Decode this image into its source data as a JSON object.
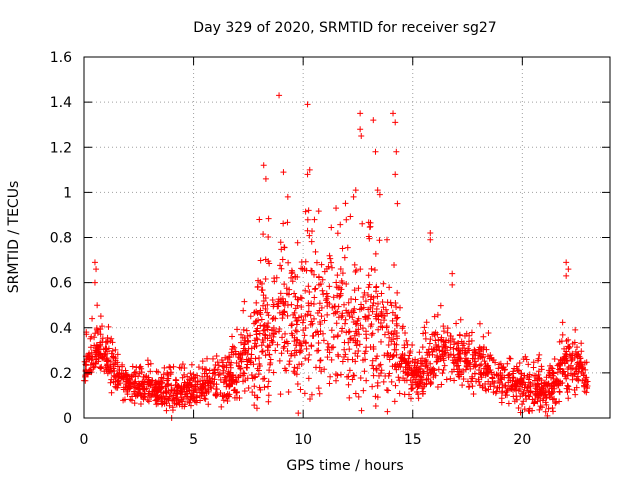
{
  "chart_data": {
    "type": "scatter",
    "title": "Day 329 of 2020, SRMTID for receiver sg27",
    "xlabel": "GPS time / hours",
    "ylabel": "SRMTID / TECUs",
    "xlim": [
      0,
      24
    ],
    "ylim": [
      0,
      1.6
    ],
    "xticks": [
      0,
      5,
      10,
      15,
      20
    ],
    "yticks": [
      0,
      0.2,
      0.4,
      0.6,
      0.8,
      1,
      1.2,
      1.4,
      1.6
    ],
    "ytick_labels": [
      "0",
      "0.2",
      "0.4",
      "0.6",
      "0.8",
      "1",
      "1.2",
      "1.4",
      "1.6"
    ],
    "grid": true,
    "marker": "+",
    "series": [
      {
        "name": "SRMTID",
        "color": "#ff0000",
        "trend": [
          [
            0,
            0.2
          ],
          [
            0.3,
            0.28
          ],
          [
            0.6,
            0.3
          ],
          [
            1,
            0.28
          ],
          [
            1.5,
            0.18
          ],
          [
            2,
            0.15
          ],
          [
            3,
            0.13
          ],
          [
            4,
            0.11
          ],
          [
            5,
            0.12
          ],
          [
            6,
            0.15
          ],
          [
            6.5,
            0.17
          ],
          [
            7,
            0.2
          ],
          [
            7.5,
            0.28
          ],
          [
            8,
            0.35
          ],
          [
            8.5,
            0.4
          ],
          [
            9,
            0.42
          ],
          [
            9.5,
            0.4
          ],
          [
            10,
            0.4
          ],
          [
            10.5,
            0.42
          ],
          [
            11,
            0.43
          ],
          [
            11.5,
            0.42
          ],
          [
            12,
            0.4
          ],
          [
            12.5,
            0.38
          ],
          [
            13,
            0.37
          ],
          [
            13.5,
            0.35
          ],
          [
            14,
            0.33
          ],
          [
            14.5,
            0.25
          ],
          [
            15,
            0.18
          ],
          [
            15.5,
            0.2
          ],
          [
            16,
            0.27
          ],
          [
            16.5,
            0.3
          ],
          [
            17,
            0.25
          ],
          [
            17.5,
            0.23
          ],
          [
            18,
            0.25
          ],
          [
            18.5,
            0.2
          ],
          [
            19,
            0.17
          ],
          [
            20,
            0.13
          ],
          [
            21,
            0.12
          ],
          [
            21.5,
            0.13
          ],
          [
            22,
            0.25
          ],
          [
            22.5,
            0.22
          ],
          [
            23,
            0.15
          ]
        ],
        "spread": [
          [
            0,
            0.1
          ],
          [
            1,
            0.12
          ],
          [
            1.5,
            0.08
          ],
          [
            6,
            0.08
          ],
          [
            7.5,
            0.18
          ],
          [
            8,
            0.3
          ],
          [
            9,
            0.35
          ],
          [
            10,
            0.35
          ],
          [
            11,
            0.3
          ],
          [
            12,
            0.35
          ],
          [
            13,
            0.35
          ],
          [
            14,
            0.3
          ],
          [
            14.5,
            0.12
          ],
          [
            15,
            0.1
          ],
          [
            16,
            0.15
          ],
          [
            17,
            0.15
          ],
          [
            18,
            0.12
          ],
          [
            19,
            0.1
          ],
          [
            21.5,
            0.1
          ],
          [
            22,
            0.2
          ],
          [
            23,
            0.08
          ]
        ],
        "x_range": [
          0,
          23
        ],
        "count": 2200,
        "outliers": [
          [
            0.5,
            0.69
          ],
          [
            0.55,
            0.66
          ],
          [
            0.5,
            0.6
          ],
          [
            0.6,
            0.5
          ],
          [
            8,
            0.88
          ],
          [
            8.2,
            1.12
          ],
          [
            8.3,
            1.06
          ],
          [
            8.9,
            1.43
          ],
          [
            9.1,
            1.09
          ],
          [
            9.3,
            0.98
          ],
          [
            10.2,
            1.39
          ],
          [
            10.2,
            1.08
          ],
          [
            10.3,
            1.1
          ],
          [
            10.25,
            0.92
          ],
          [
            10.2,
            0.83
          ],
          [
            11.5,
            0.93
          ],
          [
            12.3,
            0.98
          ],
          [
            12.4,
            1.01
          ],
          [
            12.6,
            1.35
          ],
          [
            12.6,
            1.28
          ],
          [
            12.65,
            1.25
          ],
          [
            13.2,
            1.32
          ],
          [
            13.3,
            1.18
          ],
          [
            13.4,
            1.01
          ],
          [
            13.5,
            0.99
          ],
          [
            14.1,
            1.35
          ],
          [
            14.2,
            1.31
          ],
          [
            14.25,
            1.18
          ],
          [
            14.2,
            1.08
          ],
          [
            14.3,
            0.95
          ],
          [
            15.8,
            0.82
          ],
          [
            15.8,
            0.79
          ],
          [
            16.8,
            0.64
          ],
          [
            16.8,
            0.59
          ],
          [
            22,
            0.69
          ],
          [
            22.1,
            0.66
          ],
          [
            22,
            0.63
          ],
          [
            4,
            0.0
          ]
        ]
      }
    ]
  }
}
